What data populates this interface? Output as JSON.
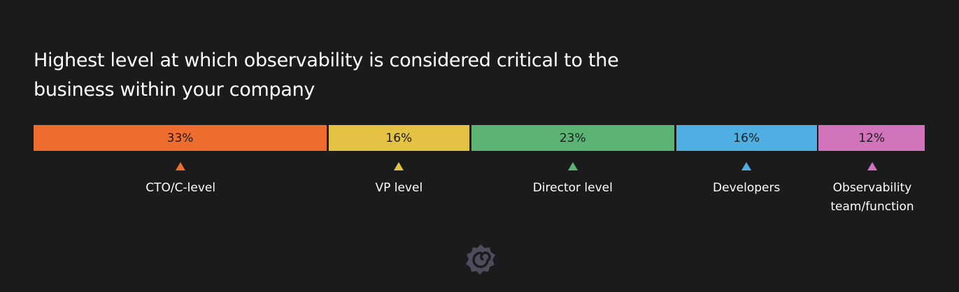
{
  "chart_data": {
    "type": "bar",
    "orientation": "horizontal-stacked-100",
    "title": "Highest level at which observability is considered critical to the business within your company",
    "categories": [
      "CTO/C-level",
      "VP level",
      "Director level",
      "Developers",
      "Observability team/function"
    ],
    "values": [
      33,
      16,
      23,
      16,
      12
    ],
    "data_labels": [
      "33%",
      "16%",
      "23%",
      "16%",
      "12%"
    ],
    "colors": [
      "#ef6c2f",
      "#e3c244",
      "#5bb374",
      "#4fafe3",
      "#d174bb"
    ],
    "legend": "below"
  },
  "logo": "grafana-logo"
}
